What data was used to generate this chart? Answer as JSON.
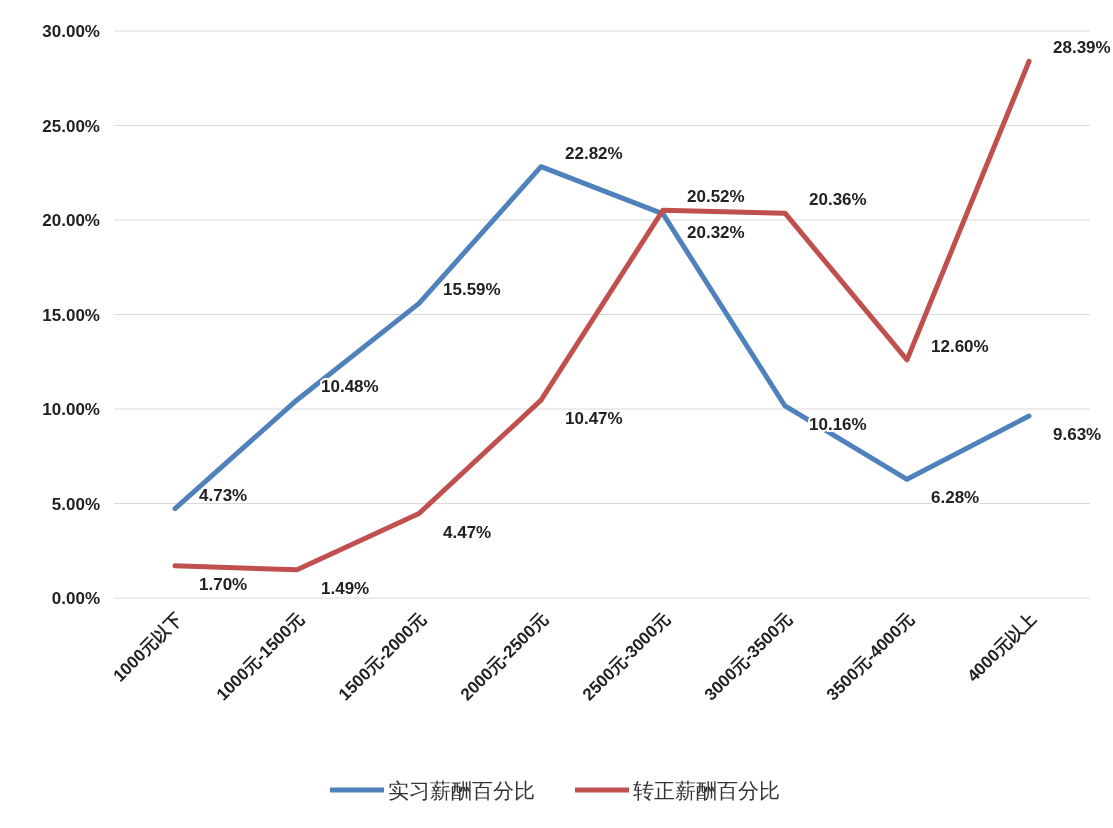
{
  "chart_data": {
    "type": "line",
    "categories": [
      "1000元以下",
      "1000元-1500元",
      "1500元-2000元",
      "2000元-2500元",
      "2500元-3000元",
      "3000元-3500元",
      "3500元-4000元",
      "4000元以上"
    ],
    "series": [
      {
        "name": "实习薪酬百分比",
        "color": "#4f81bd",
        "values": [
          4.73,
          10.48,
          15.59,
          22.82,
          20.32,
          10.16,
          6.28,
          9.63
        ],
        "value_labels": [
          "4.73%",
          "10.48%",
          "15.59%",
          "22.82%",
          "20.32%",
          "10.16%",
          "6.28%",
          "9.63%"
        ]
      },
      {
        "name": "转正薪酬百分比",
        "color": "#c0504d",
        "values": [
          1.7,
          1.49,
          4.47,
          10.47,
          20.52,
          20.36,
          12.6,
          28.39
        ],
        "value_labels": [
          "1.70%",
          "1.49%",
          "4.47%",
          "10.47%",
          "20.52%",
          "20.36%",
          "12.60%",
          "28.39%"
        ]
      }
    ],
    "ylim": [
      0,
      30
    ],
    "yticks": [
      {
        "value": 0,
        "label": "0.00%"
      },
      {
        "value": 5,
        "label": "5.00%"
      },
      {
        "value": 10,
        "label": "10.00%"
      },
      {
        "value": 15,
        "label": "15.00%"
      },
      {
        "value": 20,
        "label": "20.00%"
      },
      {
        "value": 25,
        "label": "25.00%"
      },
      {
        "value": 30,
        "label": "30.00%"
      }
    ],
    "grid": "y",
    "legend": "bottom",
    "marker": "none",
    "line_style": "solid"
  }
}
